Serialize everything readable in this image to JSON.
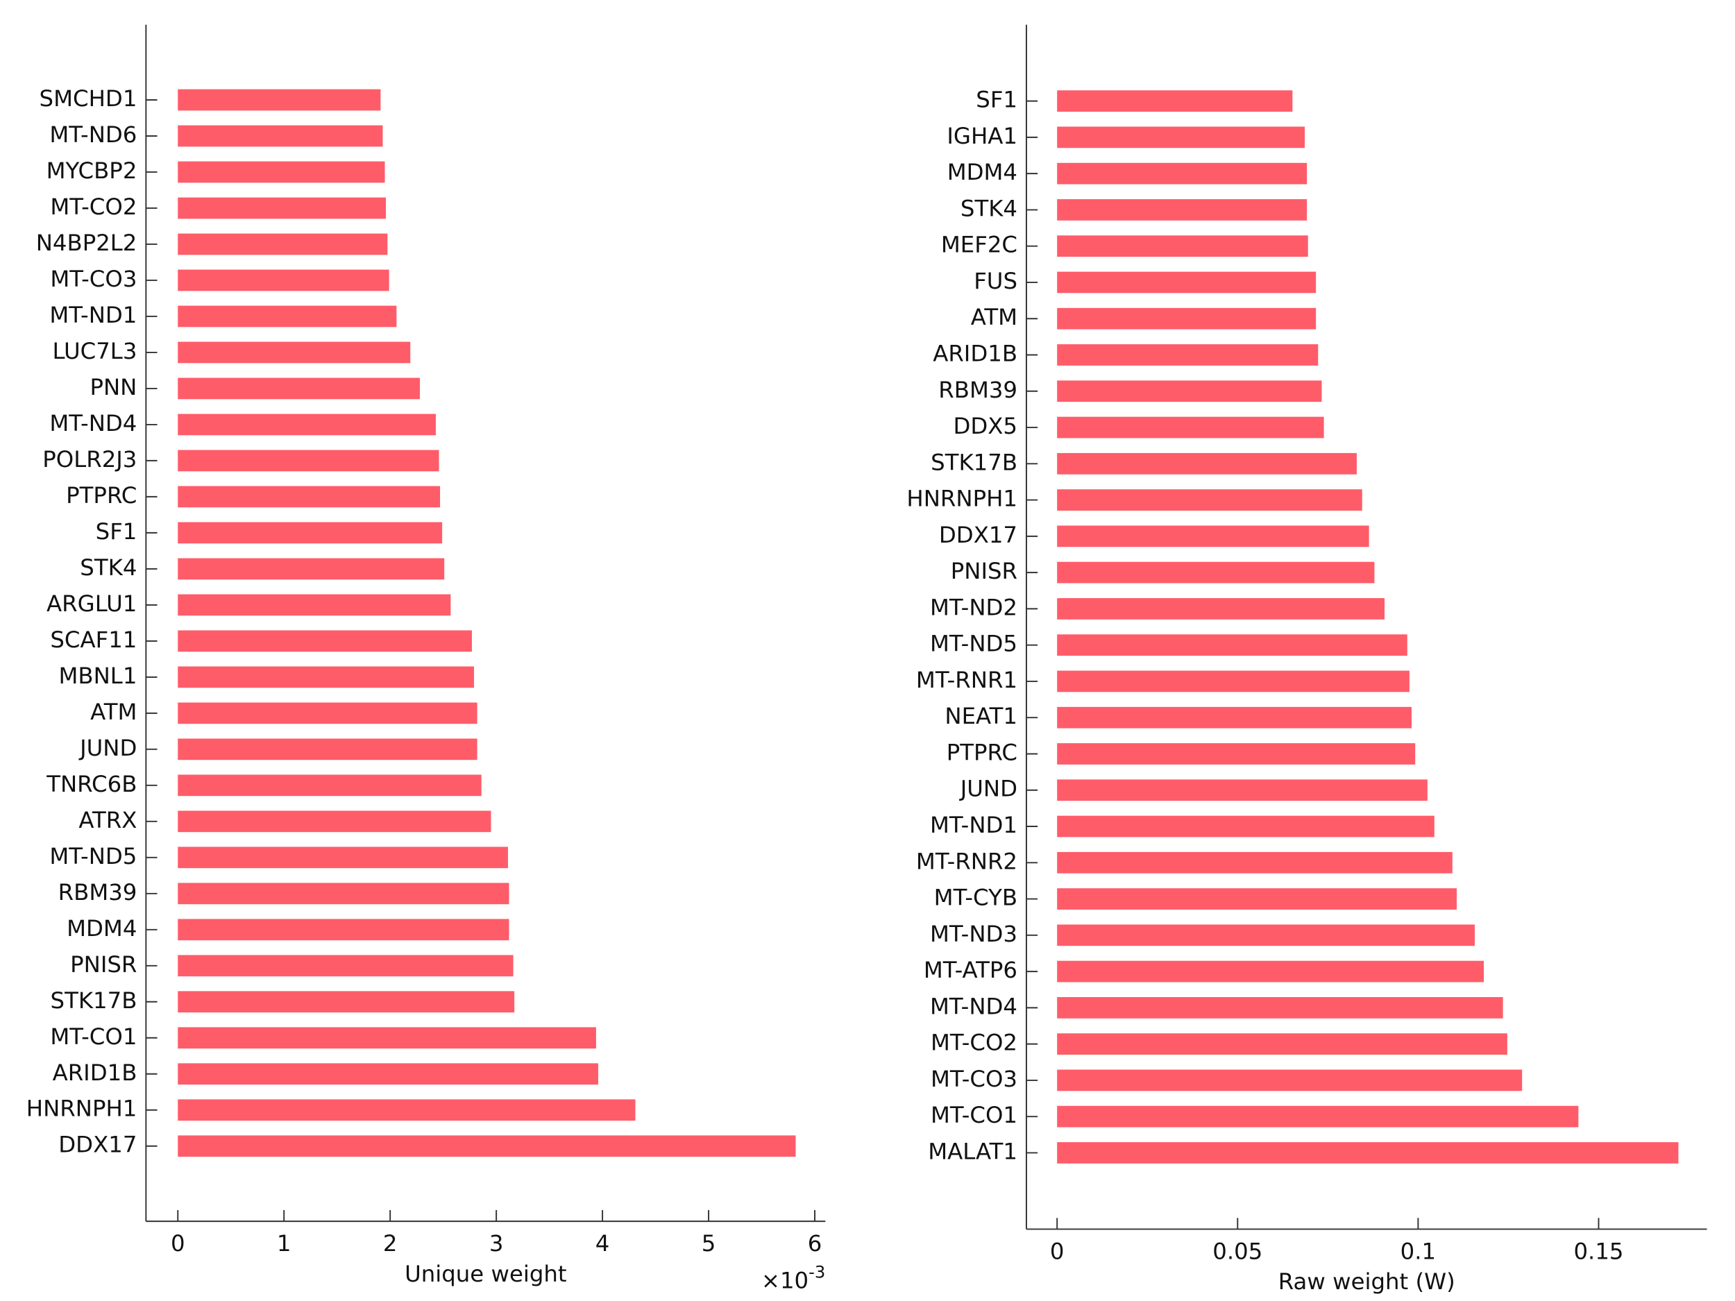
{
  "chart_data": [
    {
      "type": "barh",
      "xlabel": "Unique weight",
      "x_multiplier": {
        "base": "×10",
        "exponent": "-3"
      },
      "color": "#ff5c69",
      "categories": [
        "SMCHD1",
        "MT-ND6",
        "MYCBP2",
        "MT-CO2",
        "N4BP2L2",
        "MT-CO3",
        "MT-ND1",
        "LUC7L3",
        "PNN",
        "MT-ND4",
        "POLR2J3",
        "PTPRC",
        "SF1",
        "STK4",
        "ARGLU1",
        "SCAF11",
        "MBNL1",
        "ATM",
        "JUND",
        "TNRC6B",
        "ATRX",
        "MT-ND5",
        "RBM39",
        "MDM4",
        "PNISR",
        "STK17B",
        "MT-CO1",
        "ARID1B",
        "HNRNPH1",
        "DDX17"
      ],
      "values": [
        1.91,
        1.93,
        1.95,
        1.96,
        1.975,
        1.99,
        2.06,
        2.19,
        2.28,
        2.43,
        2.46,
        2.47,
        2.49,
        2.51,
        2.57,
        2.77,
        2.79,
        2.82,
        2.82,
        2.86,
        2.95,
        3.11,
        3.12,
        3.12,
        3.16,
        3.17,
        3.94,
        3.96,
        4.31,
        5.82
      ],
      "xlim": [
        -0.3,
        6.1
      ],
      "xticks": [
        0,
        1,
        2,
        3,
        4,
        5,
        6
      ]
    },
    {
      "type": "barh",
      "xlabel": "Raw weight (W)",
      "color": "#ff5c69",
      "categories": [
        "SF1",
        "IGHA1",
        "MDM4",
        "STK4",
        "MEF2C",
        "FUS",
        "ATM",
        "ARID1B",
        "RBM39",
        "DDX5",
        "STK17B",
        "HNRNPH1",
        "DDX17",
        "PNISR",
        "MT-ND2",
        "MT-ND5",
        "MT-RNR1",
        "NEAT1",
        "PTPRC",
        "JUND",
        "MT-ND1",
        "MT-RNR2",
        "MT-CYB",
        "MT-ND3",
        "MT-ATP6",
        "MT-ND4",
        "MT-CO2",
        "MT-CO3",
        "MT-CO1",
        "MALAT1"
      ],
      "values": [
        0.0652,
        0.0686,
        0.0692,
        0.0692,
        0.0695,
        0.0717,
        0.0717,
        0.0723,
        0.0733,
        0.0739,
        0.083,
        0.0845,
        0.0864,
        0.0879,
        0.0907,
        0.097,
        0.0976,
        0.0982,
        0.0992,
        0.1026,
        0.1045,
        0.1095,
        0.1107,
        0.1157,
        0.1182,
        0.1235,
        0.1247,
        0.1288,
        0.1444,
        0.1721
      ],
      "xlim": [
        -0.0085,
        0.18
      ],
      "xticks": [
        0,
        0.05,
        0.1,
        0.15
      ]
    }
  ]
}
